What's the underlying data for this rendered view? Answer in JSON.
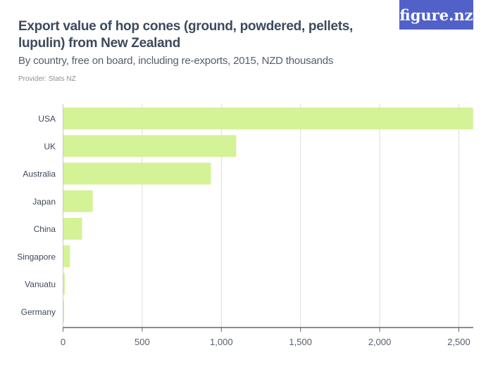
{
  "header": {
    "title": "Export value of hop cones (ground, powdered, pellets, lupulin) from New Zealand",
    "subtitle": "By country, free on board, including re-exports, 2015, NZD thousands",
    "provider": "Provider: Stats NZ",
    "logo": "figure.nz"
  },
  "colors": {
    "bar": "#d4f296",
    "logo_bg": "#5161c8",
    "grid": "#dcdcdc"
  },
  "chart_data": {
    "type": "bar",
    "orientation": "horizontal",
    "title": "Export value of hop cones (ground, powdered, pellets, lupulin) from New Zealand",
    "subtitle": "By country, free on board, including re-exports, 2015, NZD thousands",
    "categories": [
      "USA",
      "UK",
      "Australia",
      "Japan",
      "China",
      "Singapore",
      "Vanuatu",
      "Germany"
    ],
    "values": [
      2590,
      1094,
      934,
      188,
      120,
      44,
      11,
      7
    ],
    "xlim": [
      0,
      2600
    ],
    "ticks": [
      0,
      500,
      1000,
      1500,
      2000,
      2500
    ],
    "tick_labels": [
      "0",
      "500",
      "1,000",
      "1,500",
      "2,000",
      "2,500"
    ],
    "grid": true
  }
}
